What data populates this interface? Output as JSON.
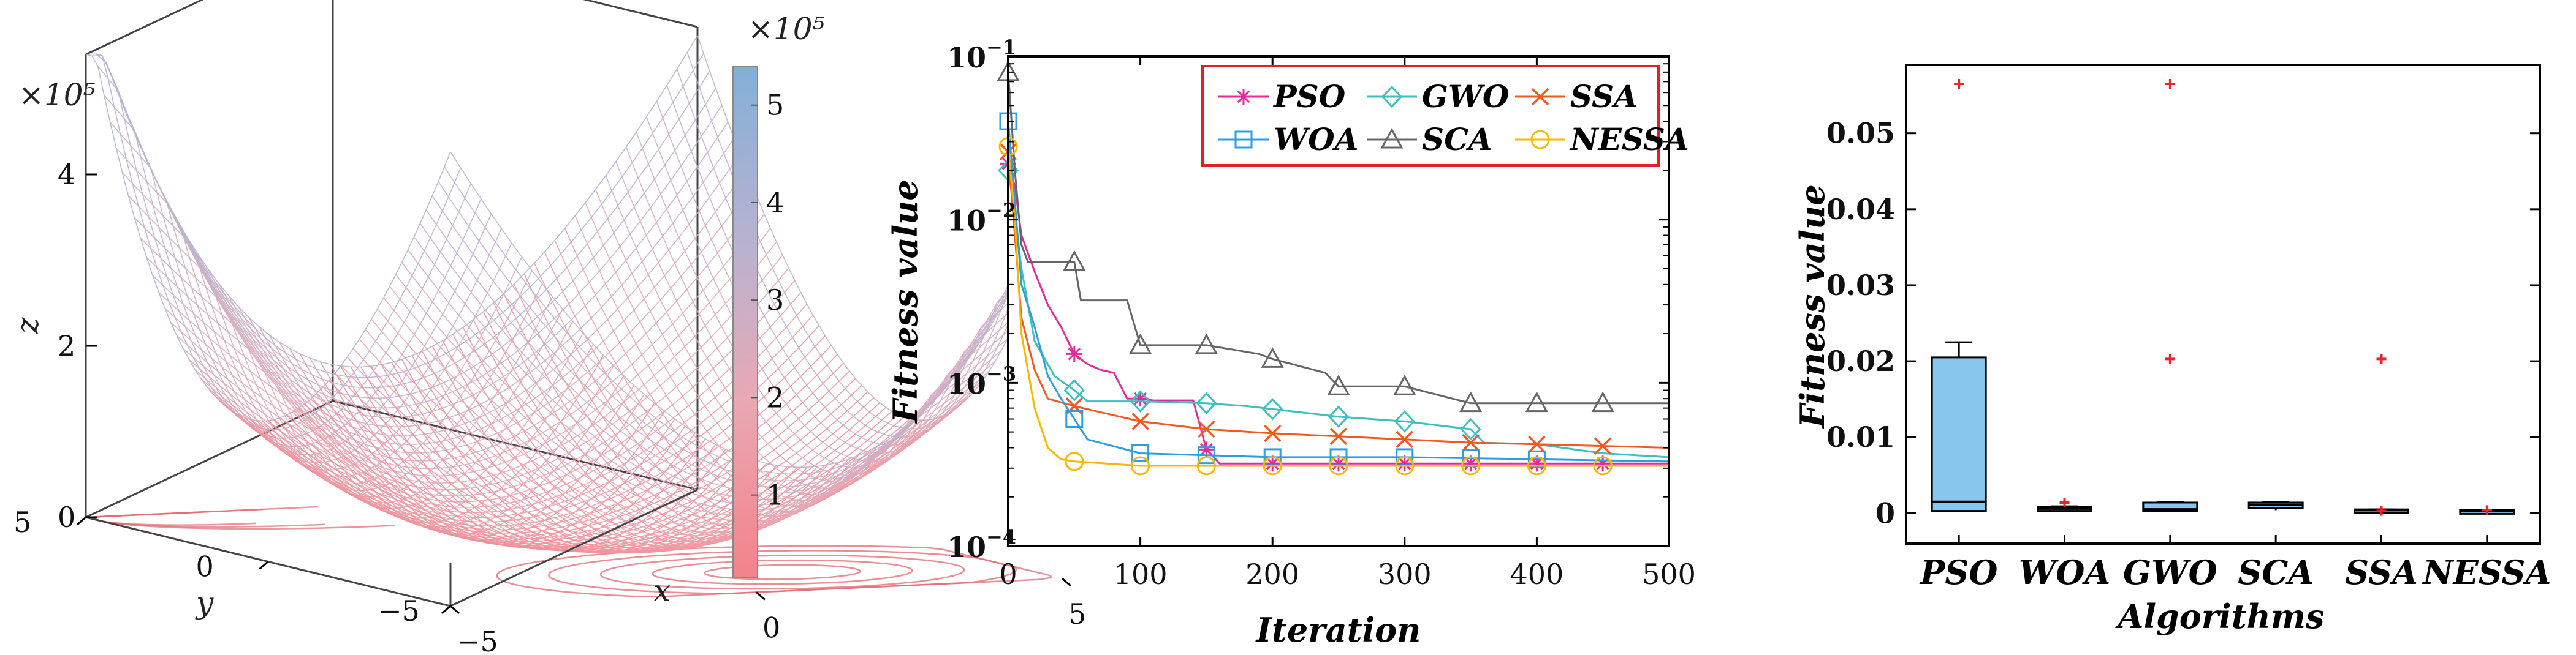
{
  "chart_data": [
    {
      "type": "surface",
      "title": "",
      "xlabel": "x",
      "ylabel": "y",
      "zlabel": "z",
      "z_exponent_label": "×10⁵",
      "z_ticks": [
        {
          "value": 0,
          "label": "0"
        },
        {
          "value": 2,
          "label": "2"
        },
        {
          "value": 4,
          "label": "4"
        }
      ],
      "x_ticks": [
        {
          "value": -5,
          "label": "−5"
        },
        {
          "value": 0,
          "label": "0"
        },
        {
          "value": 5,
          "label": "5"
        }
      ],
      "y_ticks": [
        {
          "value": -5,
          "label": "−5"
        },
        {
          "value": 0,
          "label": "0"
        },
        {
          "value": 5,
          "label": "5"
        }
      ],
      "colorbar": {
        "exponent_label": "×10⁵",
        "ticks": [
          {
            "value": 1,
            "label": "1"
          },
          {
            "value": 2,
            "label": "2"
          },
          {
            "value": 3,
            "label": "3"
          },
          {
            "value": 4,
            "label": "4"
          },
          {
            "value": 5,
            "label": "5"
          }
        ],
        "range": [
          0.15,
          5.4
        ],
        "colors": [
          "#f4828a",
          "#e9a8b4",
          "#b9b2d0",
          "#83afd8"
        ]
      },
      "surface_color": "#ef8c93",
      "contour_color": "#e06a72"
    },
    {
      "type": "line",
      "title": "",
      "xlabel": "Iteration",
      "ylabel": "Fitness value",
      "xlim": [
        0,
        500
      ],
      "ylim": [
        0.0001,
        0.1
      ],
      "yscale": "log",
      "x_ticks": [
        0,
        100,
        200,
        300,
        400,
        500
      ],
      "y_ticks": [
        {
          "value": 0.1,
          "base": "10",
          "exp": "−1"
        },
        {
          "value": 0.01,
          "base": "10",
          "exp": "−2"
        },
        {
          "value": 0.001,
          "base": "10",
          "exp": "−3"
        },
        {
          "value": 0.0001,
          "base": "10",
          "exp": "−4"
        }
      ],
      "legend_position": "top-right",
      "series": [
        {
          "name": "PSO",
          "color": "#e4299b",
          "marker": "star",
          "points": [
            [
              0,
              0.022
            ],
            [
              5,
              0.016
            ],
            [
              10,
              0.008
            ],
            [
              20,
              0.0048
            ],
            [
              30,
              0.003
            ],
            [
              40,
              0.0022
            ],
            [
              50,
              0.0015
            ],
            [
              60,
              0.0013
            ],
            [
              70,
              0.0012
            ],
            [
              80,
              0.00115
            ],
            [
              90,
              0.0008
            ],
            [
              100,
              0.0008
            ],
            [
              110,
              0.00078
            ],
            [
              120,
              0.00078
            ],
            [
              130,
              0.00078
            ],
            [
              140,
              0.00078
            ],
            [
              150,
              0.00039
            ],
            [
              160,
              0.00032
            ],
            [
              200,
              0.00032
            ],
            [
              300,
              0.00032
            ],
            [
              400,
              0.00032
            ],
            [
              500,
              0.00032
            ]
          ],
          "marker_x": [
            0,
            50,
            100,
            150,
            200,
            250,
            300,
            350,
            400,
            450
          ]
        },
        {
          "name": "GWO",
          "color": "#3fbfbf",
          "marker": "diamond",
          "points": [
            [
              0,
              0.02
            ],
            [
              5,
              0.011
            ],
            [
              10,
              0.005
            ],
            [
              20,
              0.0018
            ],
            [
              35,
              0.0011
            ],
            [
              50,
              0.0009
            ],
            [
              60,
              0.00077
            ],
            [
              100,
              0.00077
            ],
            [
              150,
              0.00075
            ],
            [
              180,
              0.00072
            ],
            [
              200,
              0.00069
            ],
            [
              250,
              0.00062
            ],
            [
              300,
              0.00058
            ],
            [
              350,
              0.00052
            ],
            [
              360,
              0.00043
            ],
            [
              400,
              0.00042
            ],
            [
              450,
              0.00037
            ],
            [
              500,
              0.00035
            ]
          ],
          "marker_x": [
            0,
            50,
            100,
            150,
            200,
            250,
            300,
            350
          ]
        },
        {
          "name": "SSA",
          "color": "#f05a22",
          "marker": "x",
          "points": [
            [
              0,
              0.026
            ],
            [
              5,
              0.008
            ],
            [
              10,
              0.0025
            ],
            [
              20,
              0.0012
            ],
            [
              30,
              0.0008
            ],
            [
              50,
              0.00072
            ],
            [
              100,
              0.00058
            ],
            [
              150,
              0.00052
            ],
            [
              200,
              0.00049
            ],
            [
              250,
              0.00047
            ],
            [
              300,
              0.00045
            ],
            [
              350,
              0.00043
            ],
            [
              400,
              0.00042
            ],
            [
              450,
              0.00041
            ],
            [
              500,
              0.0004
            ]
          ],
          "marker_x": [
            0,
            50,
            100,
            150,
            200,
            250,
            300,
            350,
            400,
            450
          ]
        },
        {
          "name": "WOA",
          "color": "#2d9de0",
          "marker": "square",
          "points": [
            [
              0,
              0.04
            ],
            [
              5,
              0.013
            ],
            [
              10,
              0.004
            ],
            [
              20,
              0.0022
            ],
            [
              30,
              0.0011
            ],
            [
              40,
              0.0008
            ],
            [
              50,
              0.0006
            ],
            [
              60,
              0.00045
            ],
            [
              100,
              0.00037
            ],
            [
              150,
              0.00036
            ],
            [
              200,
              0.00035
            ],
            [
              300,
              0.00035
            ],
            [
              400,
              0.00034
            ],
            [
              500,
              0.00033
            ]
          ],
          "marker_x": [
            0,
            50,
            100,
            150,
            200,
            250,
            300,
            350,
            400
          ]
        },
        {
          "name": "SCA",
          "color": "#666666",
          "marker": "triangle",
          "points": [
            [
              0,
              0.08
            ],
            [
              5,
              0.02
            ],
            [
              10,
              0.007
            ],
            [
              15,
              0.0055
            ],
            [
              50,
              0.0055
            ],
            [
              55,
              0.0032
            ],
            [
              90,
              0.0032
            ],
            [
              100,
              0.0017
            ],
            [
              150,
              0.0017
            ],
            [
              190,
              0.0015
            ],
            [
              200,
              0.0014
            ],
            [
              240,
              0.00115
            ],
            [
              250,
              0.00095
            ],
            [
              300,
              0.00095
            ],
            [
              350,
              0.00075
            ],
            [
              400,
              0.00075
            ],
            [
              500,
              0.00075
            ]
          ],
          "marker_x": [
            0,
            50,
            100,
            150,
            200,
            250,
            300,
            350,
            400,
            450
          ]
        },
        {
          "name": "NESSA",
          "color": "#f5b800",
          "marker": "circle",
          "points": [
            [
              0,
              0.028
            ],
            [
              5,
              0.01
            ],
            [
              10,
              0.002
            ],
            [
              20,
              0.0007
            ],
            [
              30,
              0.0004
            ],
            [
              40,
              0.00034
            ],
            [
              50,
              0.00033
            ],
            [
              100,
              0.00031
            ],
            [
              200,
              0.00031
            ],
            [
              300,
              0.00031
            ],
            [
              400,
              0.00031
            ],
            [
              500,
              0.00031
            ]
          ],
          "marker_x": [
            0,
            50,
            100,
            150,
            200,
            250,
            300,
            350,
            400,
            450
          ]
        }
      ]
    },
    {
      "type": "box",
      "title": "",
      "xlabel": "Algorithms",
      "ylabel": "Fitness value",
      "ylim": [
        -0.004,
        0.059
      ],
      "y_ticks": [
        {
          "value": 0,
          "label": "0"
        },
        {
          "value": 0.01,
          "label": "0.01"
        },
        {
          "value": 0.02,
          "label": "0.02"
        },
        {
          "value": 0.03,
          "label": "0.03"
        },
        {
          "value": 0.04,
          "label": "0.04"
        },
        {
          "value": 0.05,
          "label": "0.05"
        }
      ],
      "box_color": "#88c6ee",
      "outlier_color": "#e8262a",
      "categories": [
        "PSO",
        "WOA",
        "GWO",
        "SCA",
        "SSA",
        "NESSA"
      ],
      "boxes": [
        {
          "name": "PSO",
          "min": 0.0003,
          "q1": 0.0003,
          "median": 0.0015,
          "q3": 0.0205,
          "max": 0.0225,
          "outliers": [
            0.0565
          ]
        },
        {
          "name": "WOA",
          "min": 0.0003,
          "q1": 0.0003,
          "median": 0.0006,
          "q3": 0.0008,
          "max": 0.0009,
          "outliers": [
            0.0014
          ]
        },
        {
          "name": "GWO",
          "min": 0.0003,
          "q1": 0.0003,
          "median": 0.0005,
          "q3": 0.0014,
          "max": 0.0015,
          "outliers": [
            0.0565,
            0.0203
          ]
        },
        {
          "name": "SCA",
          "min": 0.0004,
          "q1": 0.0007,
          "median": 0.0011,
          "q3": 0.0014,
          "max": 0.0015,
          "outliers": []
        },
        {
          "name": "SSA",
          "min": 0.0003,
          "q1": 0.0003,
          "median": 0.0004,
          "q3": 0.0005,
          "max": 0.0005,
          "outliers": [
            0.0203,
            0.0003
          ]
        },
        {
          "name": "NESSA",
          "min": 0.0003,
          "q1": 0.0003,
          "median": 0.0003,
          "q3": 0.0004,
          "max": 0.0004,
          "outliers": [
            0.0004
          ]
        }
      ]
    }
  ]
}
